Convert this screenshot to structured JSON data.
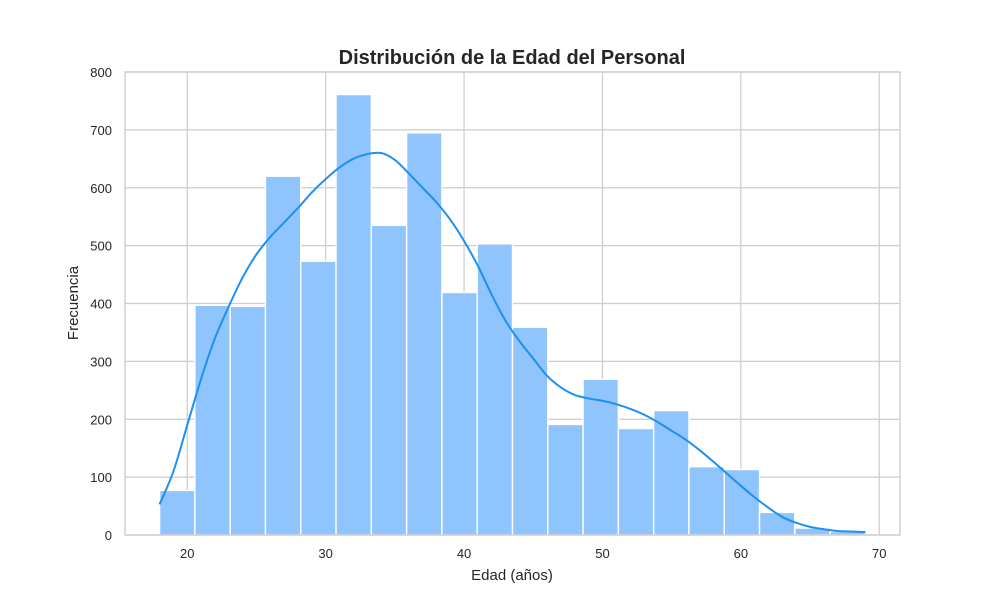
{
  "chart_data": {
    "type": "bar",
    "title": "Distribución de la Edad del Personal",
    "xlabel": "Edad (años)",
    "ylabel": "Frecuencia",
    "xlim": [
      15.5,
      71.5
    ],
    "ylim": [
      0,
      800
    ],
    "xticks": [
      20,
      30,
      40,
      50,
      60,
      70
    ],
    "yticks": [
      0,
      100,
      200,
      300,
      400,
      500,
      600,
      700,
      800
    ],
    "grid": true,
    "bar_color": "#8fc4fd",
    "line_color": "#1e90f0",
    "bins": [
      {
        "x0": 18.0,
        "x1": 20.55,
        "count": 77
      },
      {
        "x0": 20.55,
        "x1": 23.1,
        "count": 397
      },
      {
        "x0": 23.1,
        "x1": 25.65,
        "count": 395
      },
      {
        "x0": 25.65,
        "x1": 28.2,
        "count": 620
      },
      {
        "x0": 28.2,
        "x1": 30.75,
        "count": 473
      },
      {
        "x0": 30.75,
        "x1": 33.3,
        "count": 761
      },
      {
        "x0": 33.3,
        "x1": 35.85,
        "count": 535
      },
      {
        "x0": 35.85,
        "x1": 38.4,
        "count": 695
      },
      {
        "x0": 38.4,
        "x1": 40.95,
        "count": 419
      },
      {
        "x0": 40.95,
        "x1": 43.5,
        "count": 503
      },
      {
        "x0": 43.5,
        "x1": 46.05,
        "count": 359
      },
      {
        "x0": 46.05,
        "x1": 48.6,
        "count": 191
      },
      {
        "x0": 48.6,
        "x1": 51.15,
        "count": 269
      },
      {
        "x0": 51.15,
        "x1": 53.7,
        "count": 184
      },
      {
        "x0": 53.7,
        "x1": 56.25,
        "count": 215
      },
      {
        "x0": 56.25,
        "x1": 58.8,
        "count": 118
      },
      {
        "x0": 58.8,
        "x1": 61.35,
        "count": 113
      },
      {
        "x0": 61.35,
        "x1": 63.9,
        "count": 39
      },
      {
        "x0": 63.9,
        "x1": 66.45,
        "count": 12
      },
      {
        "x0": 66.45,
        "x1": 69.0,
        "count": 6
      }
    ],
    "kde_curve": {
      "x": [
        18,
        19,
        20,
        21,
        22,
        23,
        24,
        25,
        26,
        27,
        28,
        29,
        30,
        31,
        32,
        33,
        34,
        35,
        36,
        37,
        38,
        39,
        40,
        41,
        42,
        43,
        44,
        45,
        46,
        47,
        48,
        49,
        50,
        51,
        52,
        53,
        54,
        55,
        56,
        57,
        58,
        59,
        60,
        61,
        62,
        63,
        64,
        65,
        66,
        67,
        68,
        69
      ],
      "y": [
        53,
        110,
        190,
        270,
        340,
        395,
        445,
        485,
        515,
        540,
        565,
        592,
        615,
        635,
        650,
        658,
        660,
        648,
        625,
        600,
        575,
        545,
        508,
        465,
        415,
        370,
        335,
        305,
        275,
        255,
        242,
        236,
        232,
        226,
        218,
        208,
        195,
        180,
        165,
        147,
        127,
        106,
        85,
        65,
        47,
        31,
        21,
        14,
        10,
        7,
        6,
        5
      ]
    }
  }
}
